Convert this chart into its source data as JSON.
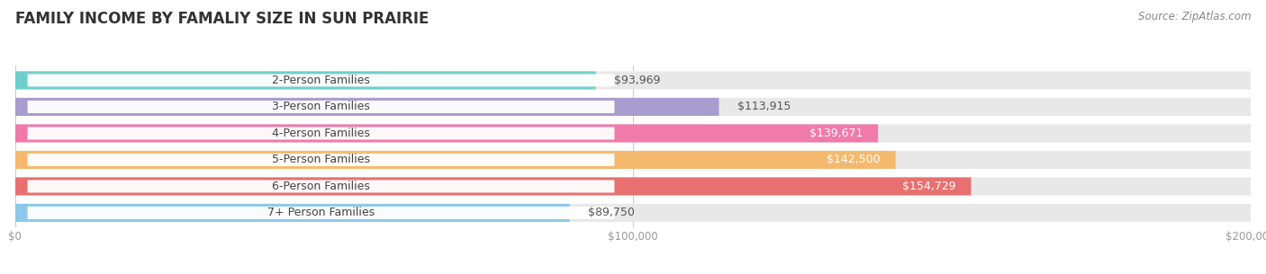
{
  "title": "FAMILY INCOME BY FAMALIY SIZE IN SUN PRAIRIE",
  "source": "Source: ZipAtlas.com",
  "categories": [
    "2-Person Families",
    "3-Person Families",
    "4-Person Families",
    "5-Person Families",
    "6-Person Families",
    "7+ Person Families"
  ],
  "values": [
    93969,
    113915,
    139671,
    142500,
    154729,
    89750
  ],
  "bar_colors": [
    "#6ecfcb",
    "#a89dce",
    "#f07aaa",
    "#f5b96e",
    "#e87070",
    "#8dc8e8"
  ],
  "bar_bg_color": "#e8e8e8",
  "xlim": [
    0,
    200000
  ],
  "xticks": [
    0,
    100000,
    200000
  ],
  "xtick_labels": [
    "$0",
    "$100,000",
    "$200,000"
  ],
  "title_fontsize": 12,
  "label_fontsize": 9,
  "value_fontsize": 9,
  "source_fontsize": 8.5
}
